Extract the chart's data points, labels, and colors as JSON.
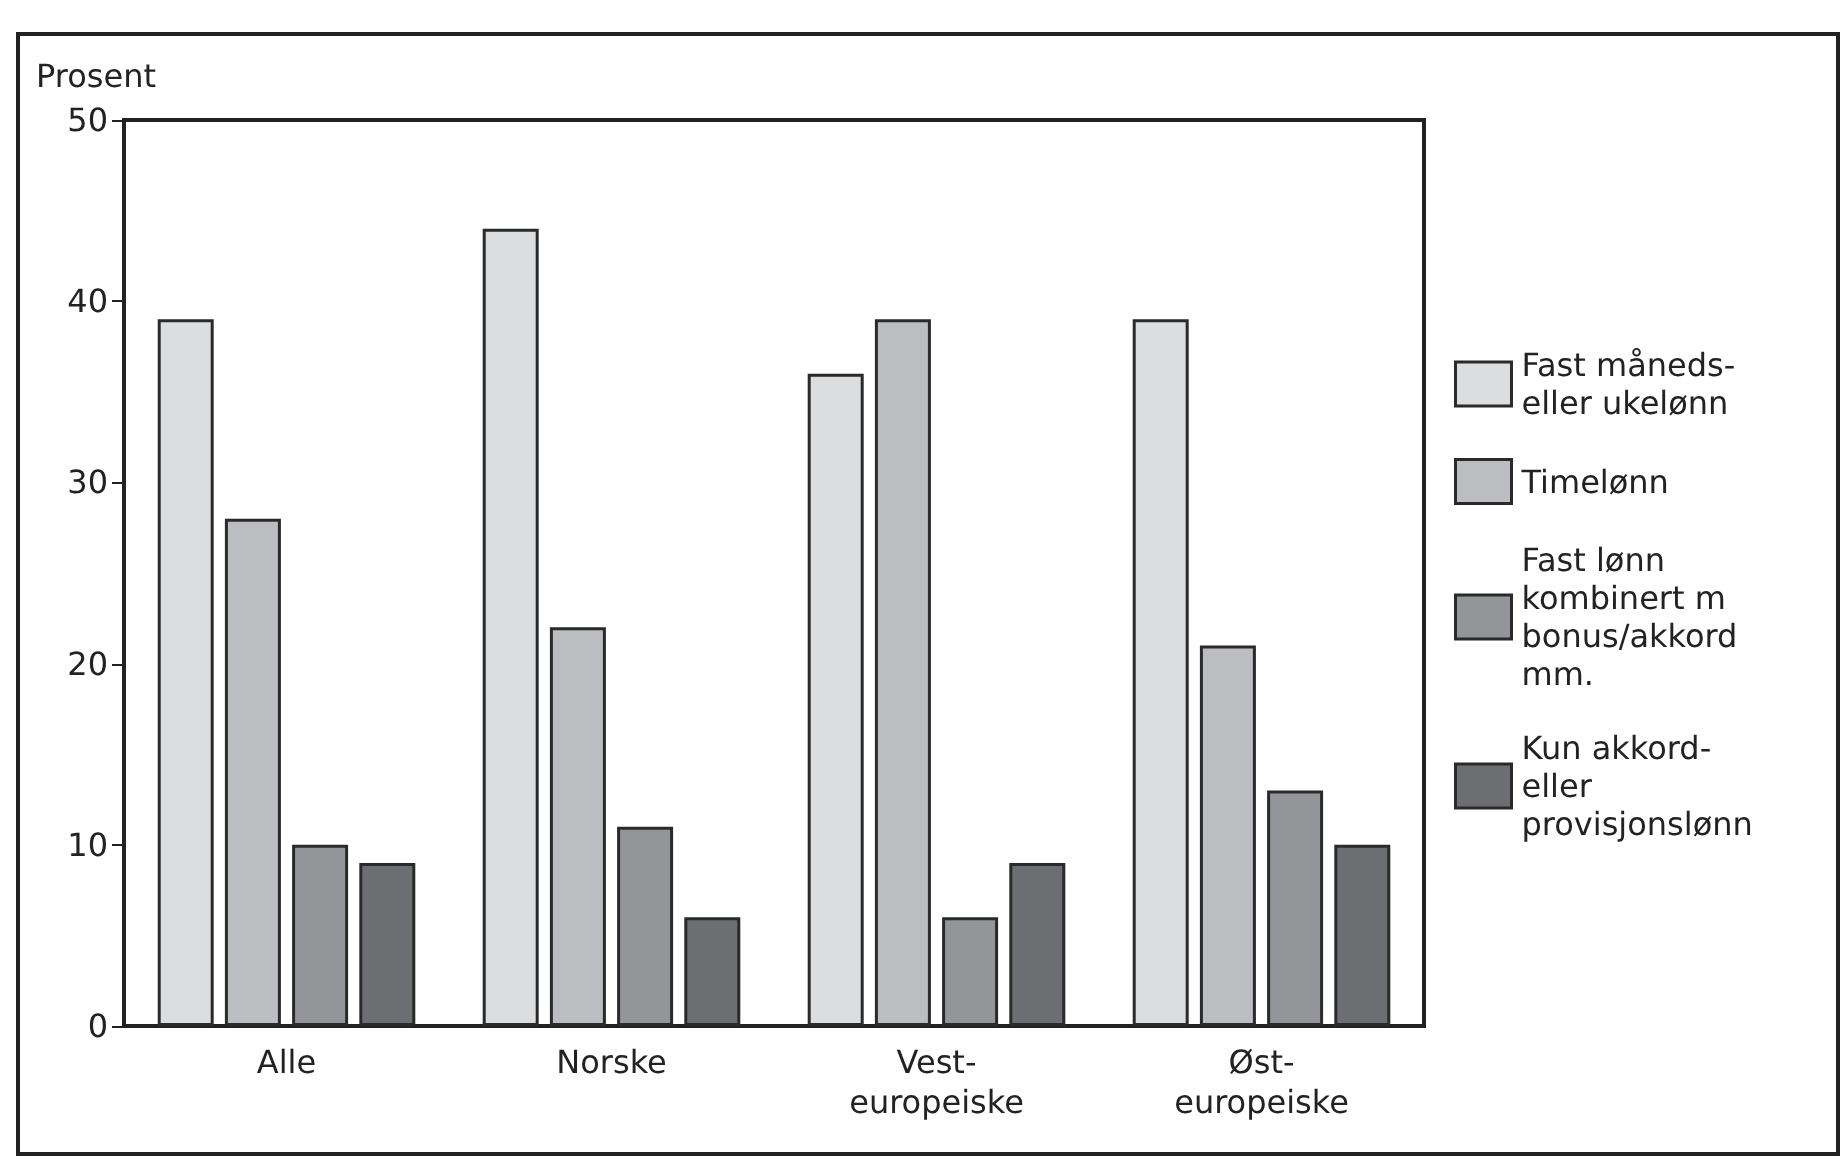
{
  "chart_data": {
    "type": "bar",
    "ylabel": "Prosent",
    "categories": [
      "Alle",
      "Norske",
      "Vest-europeiske",
      "Øst-europeiske"
    ],
    "series": [
      {
        "name": "Fast måneds- eller ukelønn",
        "color": "#dcdddf",
        "values": [
          39,
          44,
          36,
          39
        ]
      },
      {
        "name": "Timelønn",
        "color": "#bcbdc1",
        "values": [
          28,
          22,
          39,
          21
        ]
      },
      {
        "name": "Fast lønn kombinert m bonus/akkord mm.",
        "color": "#939598",
        "values": [
          10,
          11,
          6,
          13
        ]
      },
      {
        "name": "Kun akkord- eller provisjonslønn",
        "color": "#6d6e71",
        "values": [
          9,
          6,
          9,
          10
        ]
      }
    ],
    "ylim": [
      0,
      50
    ],
    "yticks": [
      0,
      10,
      20,
      30,
      40,
      50
    ],
    "grid": false,
    "legend": "right"
  }
}
